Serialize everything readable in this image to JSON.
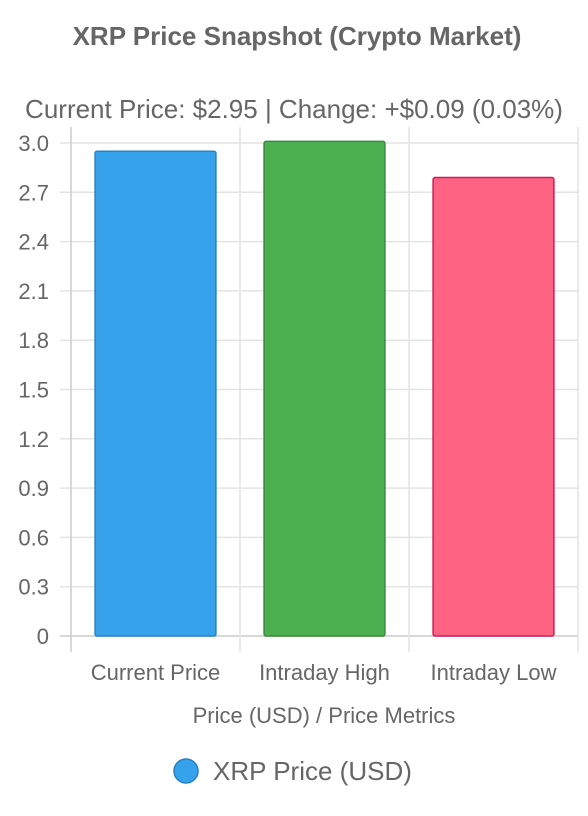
{
  "chart_data": {
    "type": "bar",
    "title": "XRP Price Snapshot (Crypto Market)",
    "subtitle": "Current Price: $2.95 | Change: +$0.09 (0.03%)",
    "categories": [
      "Current Price",
      "Intraday High",
      "Intraday Low"
    ],
    "series": [
      {
        "name": "XRP Price (USD)",
        "values": [
          2.95,
          3.01,
          2.79
        ],
        "fill_colors": [
          "#36a2eb",
          "#4caf50",
          "#ff6384"
        ],
        "border_colors": [
          "#2a82c0",
          "#3a8a3d",
          "#cc1f5a"
        ]
      }
    ],
    "xlabel": "Price (USD) / Price Metrics",
    "ylabel": "",
    "ylim": [
      0,
      3.0
    ],
    "yticks": [
      "0",
      "0.3",
      "0.6",
      "0.9",
      "1.2",
      "1.5",
      "1.8",
      "2.1",
      "2.4",
      "2.7",
      "3.0"
    ],
    "grid": true,
    "legend_position": "bottom",
    "legend_marker_color": "#36a2eb",
    "legend_marker_border": "#2a82c0"
  }
}
